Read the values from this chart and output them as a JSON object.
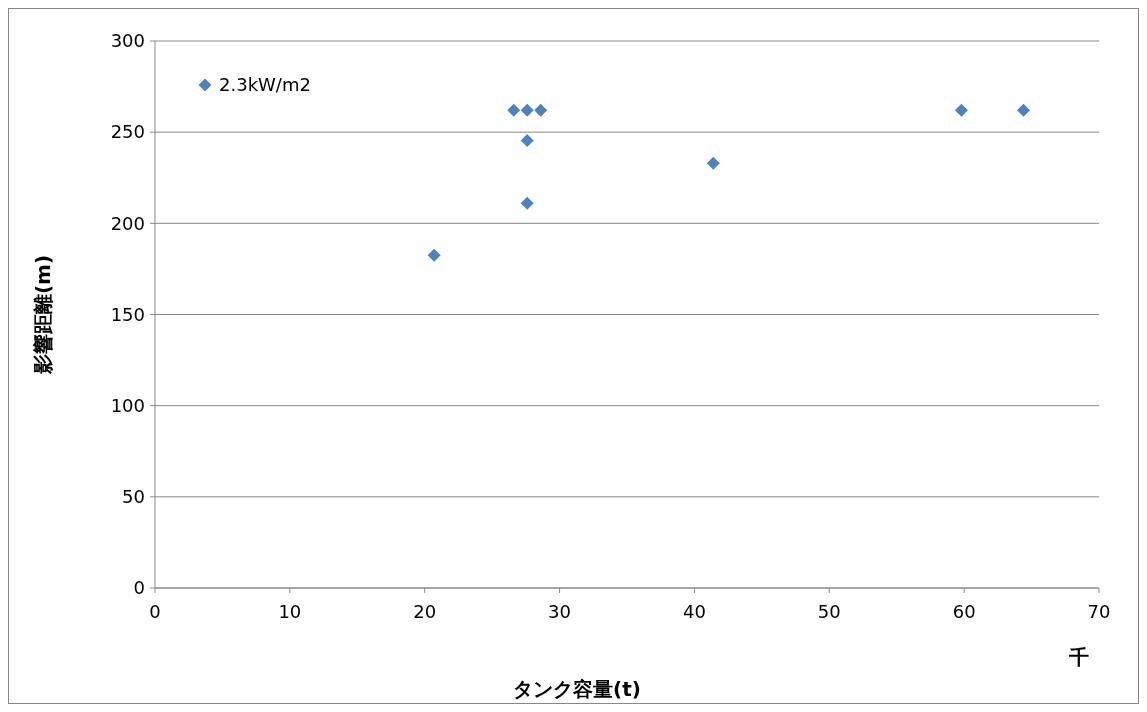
{
  "chart_data": {
    "type": "scatter",
    "xlabel": "タンク容量(t)",
    "ylabel": "影響距離(m)",
    "annotations": [
      "千"
    ],
    "series": [
      {
        "name": "2.3kW/m2",
        "color": "#4f81bd",
        "x": [
          20.7,
          26.6,
          27.6,
          28.6,
          27.6,
          27.6,
          41.4,
          59.8,
          64.4
        ],
        "values": [
          182.5,
          262,
          262,
          262,
          245.4,
          211,
          233,
          262,
          262
        ]
      }
    ],
    "xlim": [
      0,
      70
    ],
    "xticks": [
      0,
      10,
      20,
      30,
      40,
      50,
      60,
      70
    ],
    "ylim": [
      0,
      300
    ],
    "yticks": [
      0,
      50,
      100,
      150,
      200,
      250,
      300
    ],
    "grid": "y",
    "legend": "top left",
    "marker": "diamond"
  }
}
